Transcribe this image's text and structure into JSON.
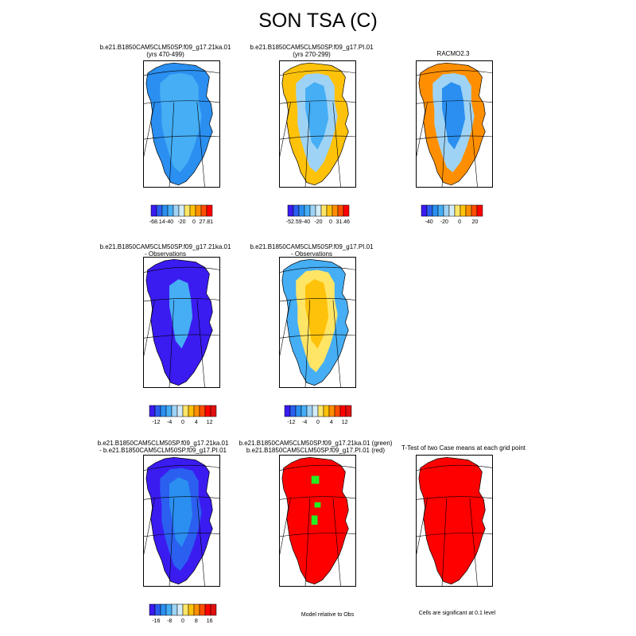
{
  "title": "SON TSA (C)",
  "panels": [
    {
      "id": "p1",
      "title_lines": [
        "b.e21.B1850CAM5CLM50SP.f09_g17.21ka.01",
        "(yrs 470-499)"
      ],
      "scheme": "case_ka"
    },
    {
      "id": "p2",
      "title_lines": [
        "b.e21.B1850CAM5CLM50SP.f09_g17.PI.01",
        "(yrs 270-299)"
      ],
      "scheme": "case_pi"
    },
    {
      "id": "p3",
      "title_lines": [
        "RACMO2.3"
      ],
      "scheme": "obs"
    },
    {
      "id": "p4",
      "title_lines": [
        "b.e21.B1850CAM5CLM50SP.f09_g17.21ka.01",
        "- Observations"
      ],
      "scheme": "diff_ka"
    },
    {
      "id": "p5",
      "title_lines": [
        "b.e21.B1850CAM5CLM50SP.f09_g17.PI.01",
        "- Observations"
      ],
      "scheme": "diff_pi"
    },
    {
      "id": "p7",
      "title_lines": [
        "b.e21.B1850CAM5CLM50SP.f09_g17.21ka.01",
        "- b.e21.B1850CAM5CLM50SP.f09_g17.PI.01"
      ],
      "scheme": "case_diff"
    },
    {
      "id": "p8",
      "title_lines": [
        "b.e21.B1850CAM5CLM50SP.f09_g17.21ka.01 (green)",
        "b.e21.B1850CAM5CLM50SP.f09_g17.PI.01 (red)"
      ],
      "scheme": "model_rel"
    },
    {
      "id": "p9",
      "title_lines": [
        "T-Test of two Case means at each grid point"
      ],
      "scheme": "ttest"
    }
  ],
  "colorbars": [
    {
      "id": "cb1",
      "labels": [
        "-68.14",
        "-40",
        "-20",
        "0",
        "27.81"
      ]
    },
    {
      "id": "cb2",
      "labels": [
        "-52.59",
        "-40",
        "-20",
        "0",
        "31.46"
      ]
    },
    {
      "id": "cb3",
      "labels": [
        "-40",
        "-20",
        "0",
        "20"
      ]
    },
    {
      "id": "cb4",
      "labels": [
        "-12",
        "-4",
        "0",
        "4",
        "12"
      ]
    },
    {
      "id": "cb5",
      "labels": [
        "-12",
        "-4",
        "0",
        "4",
        "12"
      ]
    },
    {
      "id": "cb7",
      "labels": [
        "-16",
        "-8",
        "0",
        "8",
        "16"
      ]
    }
  ],
  "colors": {
    "palette": [
      "#3a1bf0",
      "#2a5ff0",
      "#2a8ff0",
      "#45aef5",
      "#9fd3f5",
      "#d2ecf8",
      "#ffe566",
      "#ffc20a",
      "#ff8f00",
      "#ff4e00",
      "#ff0000",
      "#e01010",
      "#c21020"
    ],
    "significant_red": "#ff0000",
    "model_green": "#22ee22",
    "outline": "#000000"
  },
  "notes": {
    "model_relative": "Model relative to Obs",
    "significance": "Cells are significant at 0.1 level"
  },
  "chart_data": {
    "type": "heatmap",
    "title": "SON TSA (C)",
    "subplots": [
      {
        "title": "b.e21.B1850CAM5CLM50SP.f09_g17.21ka.01 (yrs 470-499)",
        "colorbar_labels": [
          "-68.14",
          "-40",
          "-20",
          "0",
          "27.81"
        ],
        "dominant_values": "approximately -40 to -20 C over the ice sheet"
      },
      {
        "title": "b.e21.B1850CAM5CLM50SP.f09_g17.PI.01 (yrs 270-299)",
        "colorbar_labels": [
          "-52.59",
          "-40",
          "-20",
          "0",
          "31.46"
        ],
        "dominant_values": "approximately -20 C interior, 0 to 20 C along margins"
      },
      {
        "title": "RACMO2.3",
        "colorbar_labels": [
          "-40",
          "-20",
          "0",
          "20"
        ],
        "dominant_values": "approximately -40 C interior, 0 to 20 C along margins"
      },
      {
        "title": "b.e21.B1850CAM5CLM50SP.f09_g17.21ka.01 - Observations",
        "colorbar_labels": [
          "-12",
          "-4",
          "0",
          "4",
          "12"
        ],
        "dominant_values": "mostly below -12, about -4 in the interior"
      },
      {
        "title": "b.e21.B1850CAM5CLM50SP.f09_g17.PI.01 - Observations",
        "colorbar_labels": [
          "-12",
          "-4",
          "0",
          "4",
          "12"
        ],
        "dominant_values": "about 0 to 4 interior, -4 to -12 along margins"
      },
      {
        "title": "b.e21.B1850CAM5CLM50SP.f09_g17.21ka.01 - b.e21.B1850CAM5CLM50SP.f09_g17.PI.01",
        "colorbar_labels": [
          "-16",
          "-8",
          "0",
          "8",
          "16"
        ],
        "dominant_values": "mostly -16 to -8"
      },
      {
        "title": "b.e21.B1850CAM5CLM50SP.f09_g17.21ka.01 (green) b.e21.B1850CAM5CLM50SP.f09_g17.PI.01 (red)",
        "note": "Model relative to Obs",
        "dominant_values": "red (PI.01) nearly everywhere, small green areas in the north-central interior"
      },
      {
        "title": "T-Test of two Case means at each grid point",
        "note": "Cells are significant at 0.1 level",
        "dominant_values": "all cells significant (red)"
      }
    ]
  }
}
